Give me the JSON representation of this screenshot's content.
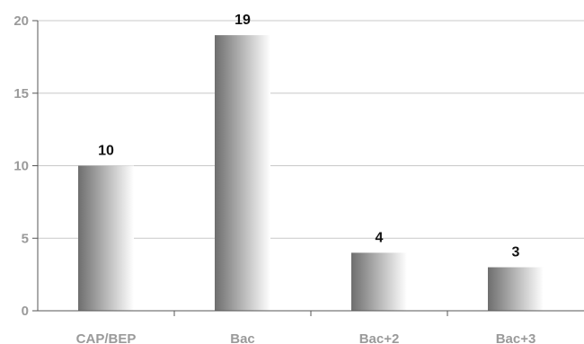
{
  "chart_data": {
    "type": "bar",
    "title": "",
    "xlabel": "",
    "ylabel": "",
    "categories": [
      "CAP/BEP",
      "Bac",
      "Bac+2",
      "Bac+3"
    ],
    "values": [
      10,
      19,
      4,
      3
    ],
    "data_labels": [
      "10",
      "19",
      "4",
      "3"
    ],
    "ylim": [
      0,
      20
    ],
    "yticks": [
      0,
      5,
      10,
      15,
      20
    ],
    "grid": true,
    "legend": "none",
    "colors": {
      "bar_dark": "#6e6e6e",
      "bar_light": "#ffffff",
      "grid": "#c8c8c8",
      "axis": "#555555",
      "tick_text": "#9a9a9a",
      "label_text": "#111111"
    }
  }
}
